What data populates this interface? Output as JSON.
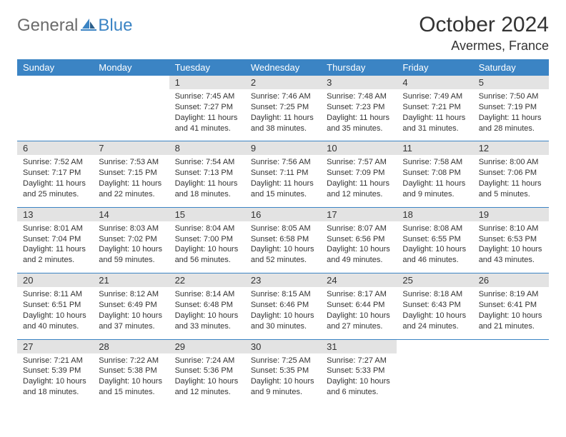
{
  "brand": {
    "general": "General",
    "blue": "Blue"
  },
  "title": "October 2024",
  "location": "Avermes, France",
  "colors": {
    "accent": "#3b84c4",
    "header_bg": "#3b84c4",
    "daynum_bg": "#e3e3e3",
    "text": "#333333"
  },
  "day_headers": [
    "Sunday",
    "Monday",
    "Tuesday",
    "Wednesday",
    "Thursday",
    "Friday",
    "Saturday"
  ],
  "weeks": [
    [
      {
        "n": "",
        "sr": "",
        "ss": "",
        "dl": ""
      },
      {
        "n": "",
        "sr": "",
        "ss": "",
        "dl": ""
      },
      {
        "n": "1",
        "sr": "Sunrise: 7:45 AM",
        "ss": "Sunset: 7:27 PM",
        "dl": "Daylight: 11 hours and 41 minutes."
      },
      {
        "n": "2",
        "sr": "Sunrise: 7:46 AM",
        "ss": "Sunset: 7:25 PM",
        "dl": "Daylight: 11 hours and 38 minutes."
      },
      {
        "n": "3",
        "sr": "Sunrise: 7:48 AM",
        "ss": "Sunset: 7:23 PM",
        "dl": "Daylight: 11 hours and 35 minutes."
      },
      {
        "n": "4",
        "sr": "Sunrise: 7:49 AM",
        "ss": "Sunset: 7:21 PM",
        "dl": "Daylight: 11 hours and 31 minutes."
      },
      {
        "n": "5",
        "sr": "Sunrise: 7:50 AM",
        "ss": "Sunset: 7:19 PM",
        "dl": "Daylight: 11 hours and 28 minutes."
      }
    ],
    [
      {
        "n": "6",
        "sr": "Sunrise: 7:52 AM",
        "ss": "Sunset: 7:17 PM",
        "dl": "Daylight: 11 hours and 25 minutes."
      },
      {
        "n": "7",
        "sr": "Sunrise: 7:53 AM",
        "ss": "Sunset: 7:15 PM",
        "dl": "Daylight: 11 hours and 22 minutes."
      },
      {
        "n": "8",
        "sr": "Sunrise: 7:54 AM",
        "ss": "Sunset: 7:13 PM",
        "dl": "Daylight: 11 hours and 18 minutes."
      },
      {
        "n": "9",
        "sr": "Sunrise: 7:56 AM",
        "ss": "Sunset: 7:11 PM",
        "dl": "Daylight: 11 hours and 15 minutes."
      },
      {
        "n": "10",
        "sr": "Sunrise: 7:57 AM",
        "ss": "Sunset: 7:09 PM",
        "dl": "Daylight: 11 hours and 12 minutes."
      },
      {
        "n": "11",
        "sr": "Sunrise: 7:58 AM",
        "ss": "Sunset: 7:08 PM",
        "dl": "Daylight: 11 hours and 9 minutes."
      },
      {
        "n": "12",
        "sr": "Sunrise: 8:00 AM",
        "ss": "Sunset: 7:06 PM",
        "dl": "Daylight: 11 hours and 5 minutes."
      }
    ],
    [
      {
        "n": "13",
        "sr": "Sunrise: 8:01 AM",
        "ss": "Sunset: 7:04 PM",
        "dl": "Daylight: 11 hours and 2 minutes."
      },
      {
        "n": "14",
        "sr": "Sunrise: 8:03 AM",
        "ss": "Sunset: 7:02 PM",
        "dl": "Daylight: 10 hours and 59 minutes."
      },
      {
        "n": "15",
        "sr": "Sunrise: 8:04 AM",
        "ss": "Sunset: 7:00 PM",
        "dl": "Daylight: 10 hours and 56 minutes."
      },
      {
        "n": "16",
        "sr": "Sunrise: 8:05 AM",
        "ss": "Sunset: 6:58 PM",
        "dl": "Daylight: 10 hours and 52 minutes."
      },
      {
        "n": "17",
        "sr": "Sunrise: 8:07 AM",
        "ss": "Sunset: 6:56 PM",
        "dl": "Daylight: 10 hours and 49 minutes."
      },
      {
        "n": "18",
        "sr": "Sunrise: 8:08 AM",
        "ss": "Sunset: 6:55 PM",
        "dl": "Daylight: 10 hours and 46 minutes."
      },
      {
        "n": "19",
        "sr": "Sunrise: 8:10 AM",
        "ss": "Sunset: 6:53 PM",
        "dl": "Daylight: 10 hours and 43 minutes."
      }
    ],
    [
      {
        "n": "20",
        "sr": "Sunrise: 8:11 AM",
        "ss": "Sunset: 6:51 PM",
        "dl": "Daylight: 10 hours and 40 minutes."
      },
      {
        "n": "21",
        "sr": "Sunrise: 8:12 AM",
        "ss": "Sunset: 6:49 PM",
        "dl": "Daylight: 10 hours and 37 minutes."
      },
      {
        "n": "22",
        "sr": "Sunrise: 8:14 AM",
        "ss": "Sunset: 6:48 PM",
        "dl": "Daylight: 10 hours and 33 minutes."
      },
      {
        "n": "23",
        "sr": "Sunrise: 8:15 AM",
        "ss": "Sunset: 6:46 PM",
        "dl": "Daylight: 10 hours and 30 minutes."
      },
      {
        "n": "24",
        "sr": "Sunrise: 8:17 AM",
        "ss": "Sunset: 6:44 PM",
        "dl": "Daylight: 10 hours and 27 minutes."
      },
      {
        "n": "25",
        "sr": "Sunrise: 8:18 AM",
        "ss": "Sunset: 6:43 PM",
        "dl": "Daylight: 10 hours and 24 minutes."
      },
      {
        "n": "26",
        "sr": "Sunrise: 8:19 AM",
        "ss": "Sunset: 6:41 PM",
        "dl": "Daylight: 10 hours and 21 minutes."
      }
    ],
    [
      {
        "n": "27",
        "sr": "Sunrise: 7:21 AM",
        "ss": "Sunset: 5:39 PM",
        "dl": "Daylight: 10 hours and 18 minutes."
      },
      {
        "n": "28",
        "sr": "Sunrise: 7:22 AM",
        "ss": "Sunset: 5:38 PM",
        "dl": "Daylight: 10 hours and 15 minutes."
      },
      {
        "n": "29",
        "sr": "Sunrise: 7:24 AM",
        "ss": "Sunset: 5:36 PM",
        "dl": "Daylight: 10 hours and 12 minutes."
      },
      {
        "n": "30",
        "sr": "Sunrise: 7:25 AM",
        "ss": "Sunset: 5:35 PM",
        "dl": "Daylight: 10 hours and 9 minutes."
      },
      {
        "n": "31",
        "sr": "Sunrise: 7:27 AM",
        "ss": "Sunset: 5:33 PM",
        "dl": "Daylight: 10 hours and 6 minutes."
      },
      {
        "n": "",
        "sr": "",
        "ss": "",
        "dl": ""
      },
      {
        "n": "",
        "sr": "",
        "ss": "",
        "dl": ""
      }
    ]
  ]
}
